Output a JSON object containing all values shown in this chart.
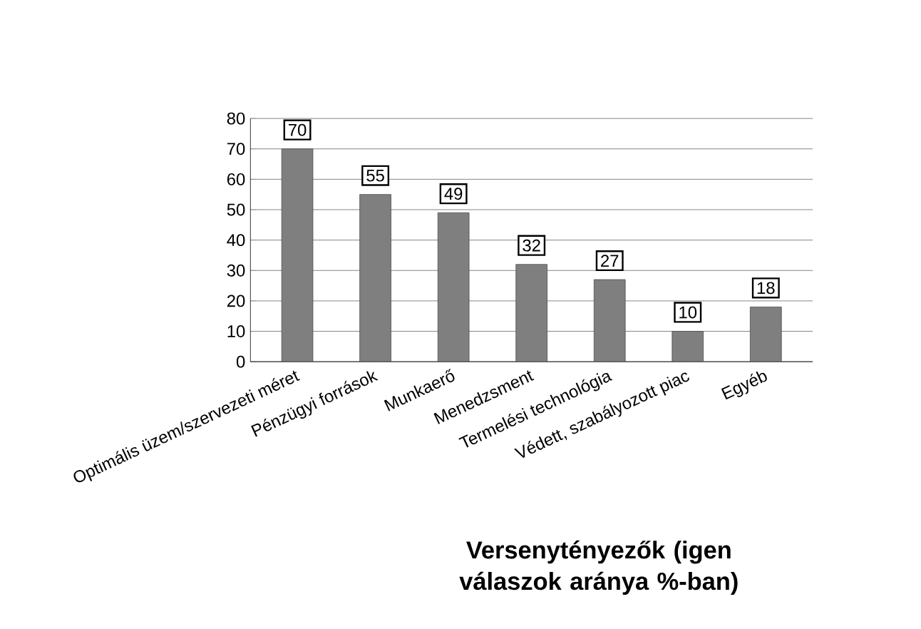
{
  "chart_data": {
    "type": "bar",
    "xlabel": "Versenytényezők (igen válaszok  aránya %-ban)",
    "categories": [
      "Optimális üzem/szervezeti méret",
      "Pénzügyi források",
      "Munkaerő",
      "Menedzsment",
      "Termelési technológia",
      "Védett, szabályozott piac",
      "Egyéb"
    ],
    "values": [
      70,
      55,
      49,
      32,
      27,
      10,
      18
    ],
    "color": "#7f7f7f",
    "ylim": [
      0,
      80
    ],
    "yticks": [
      0,
      10,
      20,
      30,
      40,
      50,
      60,
      70,
      80
    ],
    "grid": "y",
    "data_labels": true
  }
}
